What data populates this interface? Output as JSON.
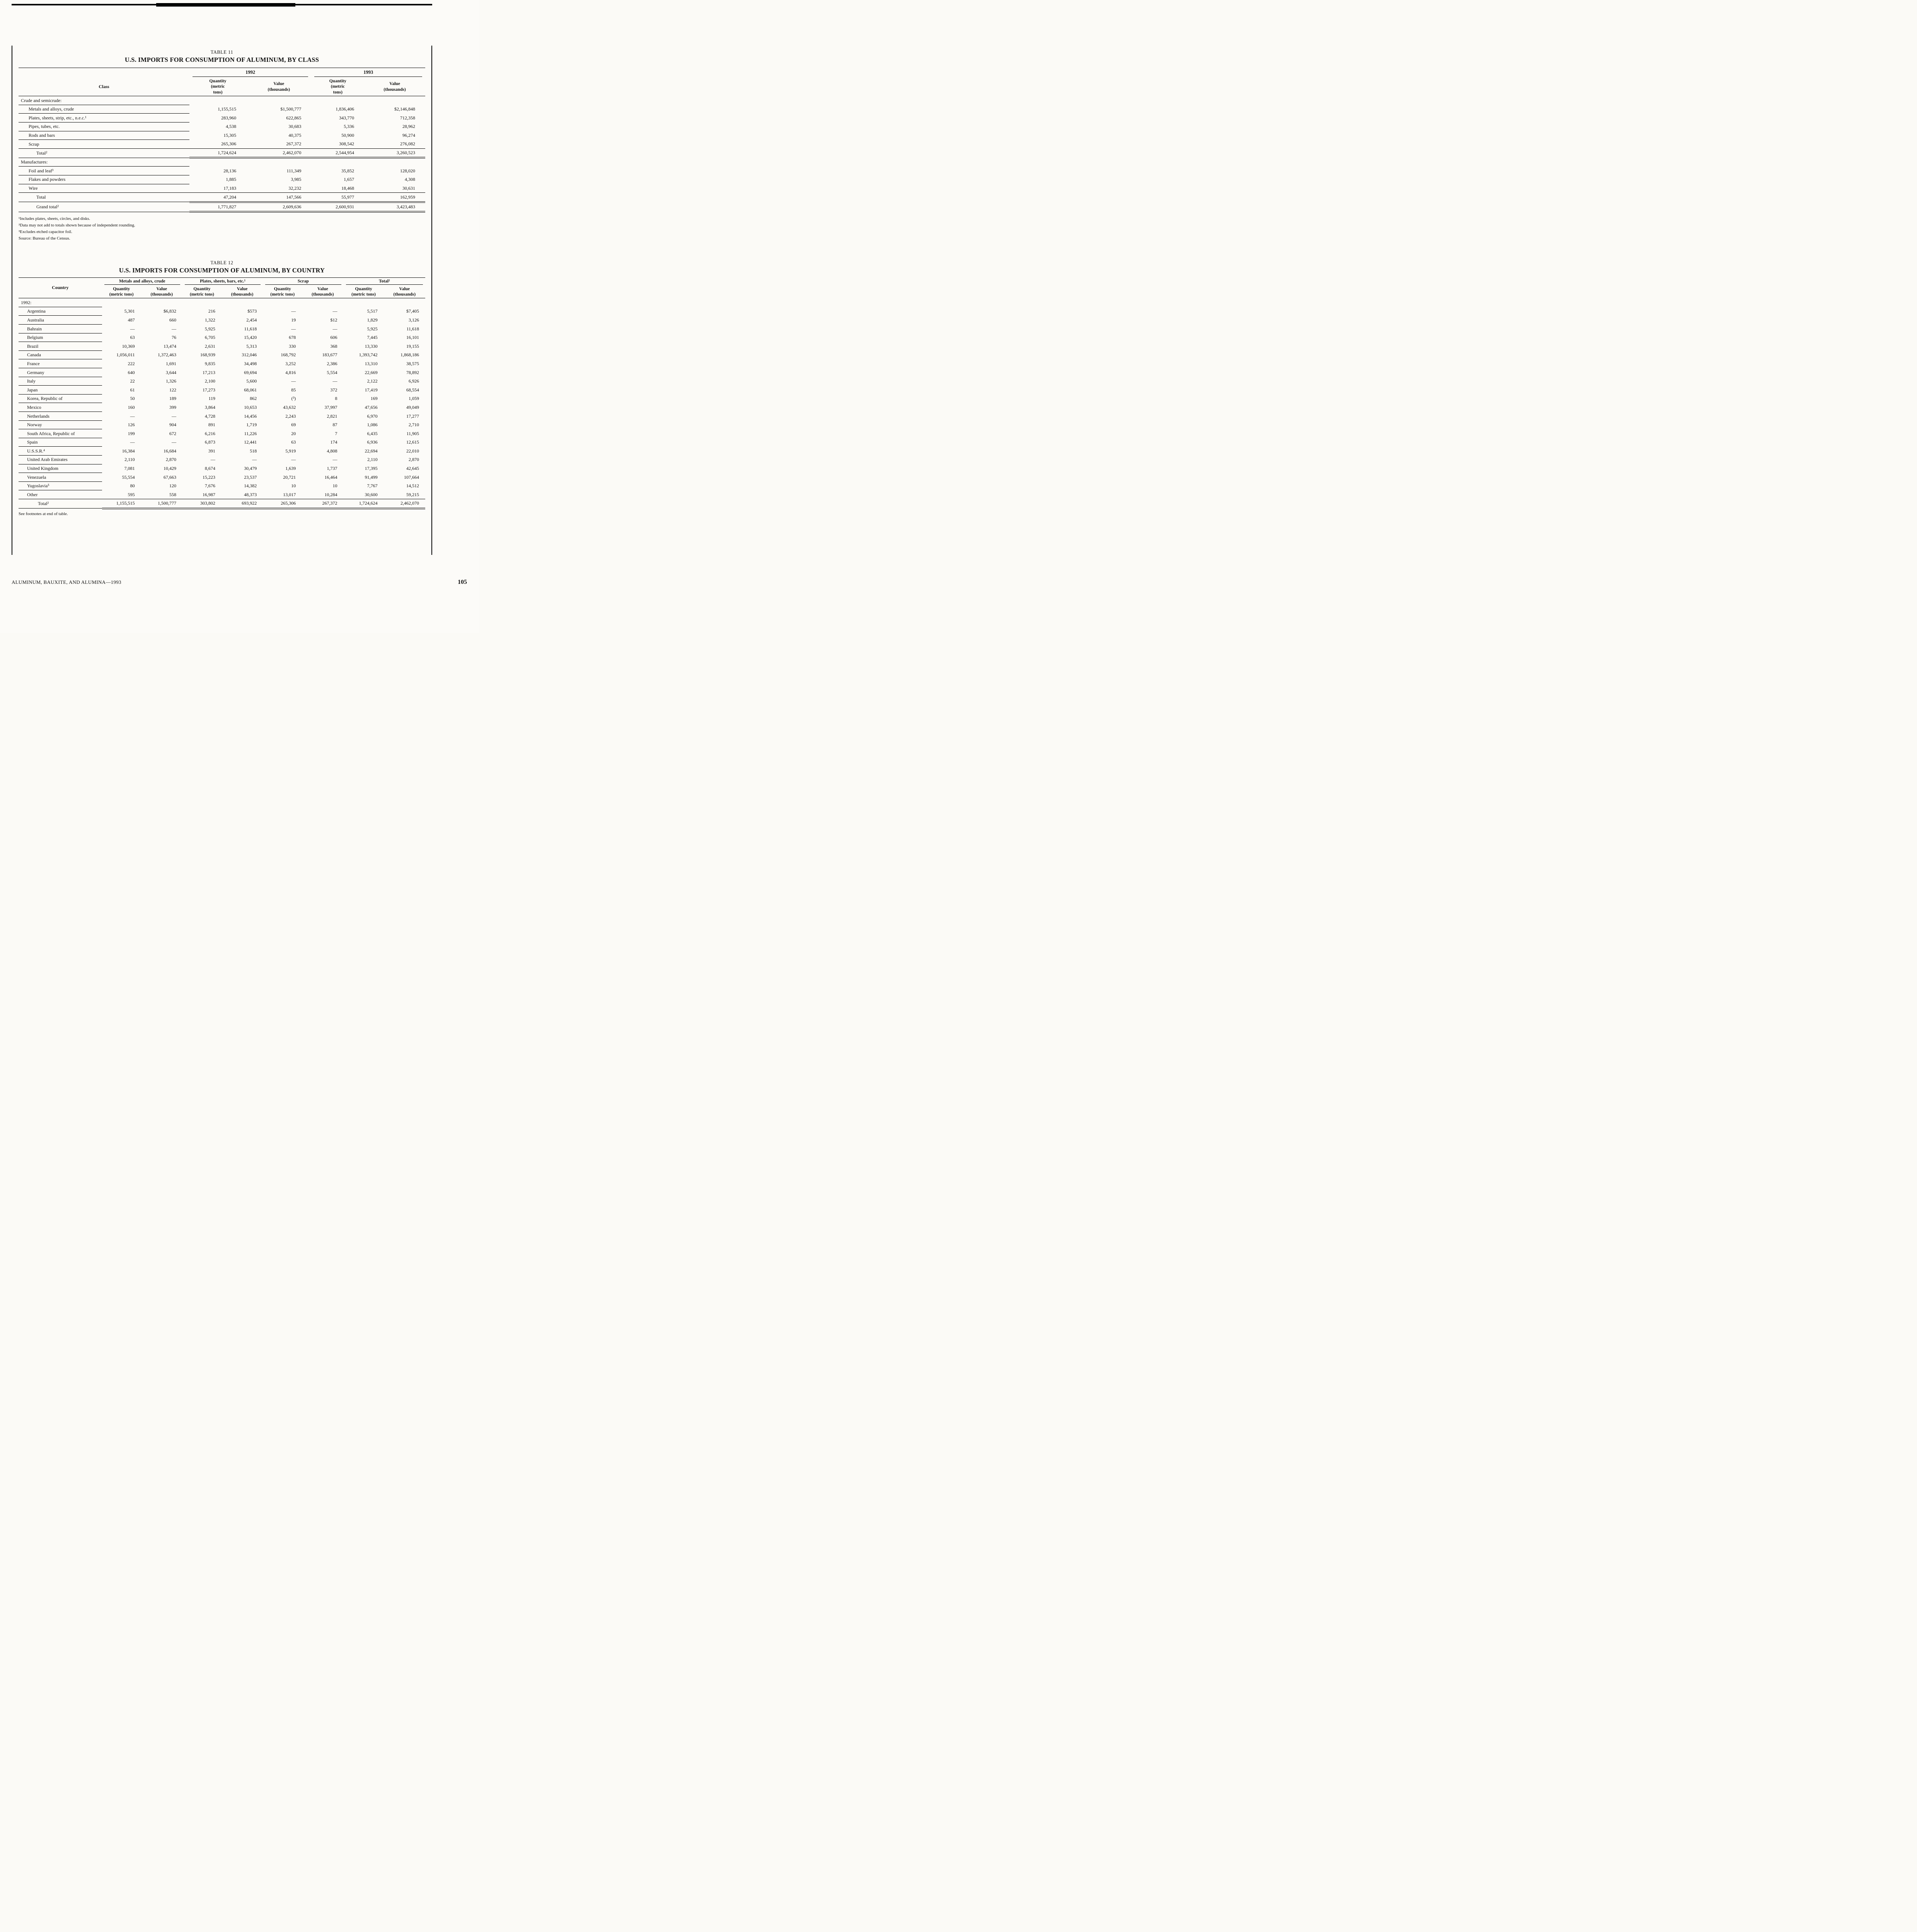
{
  "page": {
    "footer_left": "ALUMINUM, BAUXITE, AND ALUMINA—1993",
    "page_number": "105"
  },
  "table11": {
    "caption": "TABLE 11",
    "title": "U.S. IMPORTS FOR CONSUMPTION OF ALUMINUM, BY CLASS",
    "class_header": "Class",
    "year_1992": "1992",
    "year_1993": "1993",
    "quantity_header": "Quantity\n(metric\ntons)",
    "value_header": "Value\n(thousands)",
    "rows": [
      {
        "type": "section",
        "label": "Crude and semicrude:"
      },
      {
        "type": "data",
        "label": "Metals and alloys, crude",
        "values": [
          "1,155,515",
          "$1,500,777",
          "1,836,406",
          "$2,146,848"
        ]
      },
      {
        "type": "data",
        "label": "Plates, sheets, strip, etc., n.e.c.¹",
        "values": [
          "283,960",
          "622,865",
          "343,770",
          "712,358"
        ]
      },
      {
        "type": "data",
        "label": "Pipes, tubes, etc.",
        "values": [
          "4,538",
          "30,683",
          "5,336",
          "28,962"
        ]
      },
      {
        "type": "data",
        "label": "Rods and bars",
        "values": [
          "15,305",
          "40,375",
          "50,900",
          "96,274"
        ]
      },
      {
        "type": "data",
        "label": "Scrap",
        "values": [
          "265,306",
          "267,372",
          "308,542",
          "276,082"
        ]
      },
      {
        "type": "total",
        "label": "Total²",
        "values": [
          "1,724,624",
          "2,462,070",
          "2,544,954",
          "3,260,523"
        ]
      },
      {
        "type": "section",
        "label": "Manufactures:"
      },
      {
        "type": "data",
        "label": "Foil and leaf³",
        "values": [
          "28,136",
          "111,349",
          "35,852",
          "128,020"
        ]
      },
      {
        "type": "data",
        "label": "Flakes and powders",
        "values": [
          "1,885",
          "3,985",
          "1,657",
          "4,308"
        ]
      },
      {
        "type": "data",
        "label": "Wire",
        "values": [
          "17,183",
          "32,232",
          "18,468",
          "30,631"
        ]
      },
      {
        "type": "total",
        "label": "Total",
        "values": [
          "47,204",
          "147,566",
          "55,977",
          "162,959"
        ]
      },
      {
        "type": "grand",
        "label": "Grand total²",
        "values": [
          "1,771,827",
          "2,609,636",
          "2,600,931",
          "3,423,483"
        ]
      }
    ],
    "footnotes": [
      "¹Includes plates, sheets, circles, and disks.",
      "²Data may not add to totals shown because of independent rounding.",
      "³Excludes etched capacitor foil.",
      "Source:  Bureau of the Census."
    ]
  },
  "table12": {
    "caption": "TABLE 12",
    "title": "U.S. IMPORTS FOR CONSUMPTION OF ALUMINUM, BY COUNTRY",
    "country_header": "Country",
    "group_headers": [
      "Metals and alloys, crude",
      "Plates, sheets, bars, etc.¹",
      "Scrap",
      "Total²"
    ],
    "quantity_header": "Quantity\n(metric tons)",
    "value_header": "Value\n(thousands)",
    "rows": [
      {
        "type": "section",
        "label": "1992:"
      },
      {
        "type": "data",
        "label": "Argentina",
        "values": [
          "5,301",
          "$6,832",
          "216",
          "$573",
          "—",
          "—",
          "5,517",
          "$7,405"
        ]
      },
      {
        "type": "data",
        "label": "Australia",
        "values": [
          "487",
          "660",
          "1,322",
          "2,454",
          "19",
          "$12",
          "1,829",
          "3,126"
        ]
      },
      {
        "type": "data",
        "label": "Bahrain",
        "values": [
          "—",
          "—",
          "5,925",
          "11,618",
          "—",
          "—",
          "5,925",
          "11,618"
        ]
      },
      {
        "type": "data",
        "label": "Belgium",
        "values": [
          "63",
          "76",
          "6,705",
          "15,420",
          "678",
          "606",
          "7,445",
          "16,101"
        ]
      },
      {
        "type": "data",
        "label": "Brazil",
        "values": [
          "10,369",
          "13,474",
          "2,631",
          "5,313",
          "330",
          "368",
          "13,330",
          "19,155"
        ]
      },
      {
        "type": "data",
        "label": "Canada",
        "values": [
          "1,056,011",
          "1,372,463",
          "168,939",
          "312,046",
          "168,792",
          "183,677",
          "1,393,742",
          "1,868,186"
        ]
      },
      {
        "type": "data",
        "label": "France",
        "values": [
          "222",
          "1,691",
          "9,835",
          "34,498",
          "3,252",
          "2,386",
          "13,310",
          "38,575"
        ]
      },
      {
        "type": "data",
        "label": "Germany",
        "values": [
          "640",
          "3,644",
          "17,213",
          "69,694",
          "4,816",
          "5,554",
          "22,669",
          "78,892"
        ]
      },
      {
        "type": "data",
        "label": "Italy",
        "values": [
          "22",
          "1,326",
          "2,100",
          "5,600",
          "—",
          "—",
          "2,122",
          "6,926"
        ]
      },
      {
        "type": "data",
        "label": "Japan",
        "values": [
          "61",
          "122",
          "17,273",
          "68,061",
          "85",
          "372",
          "17,419",
          "68,554"
        ]
      },
      {
        "type": "data",
        "label": "Korea, Republic of",
        "values": [
          "50",
          "189",
          "119",
          "862",
          "(³)",
          "8",
          "169",
          "1,059"
        ]
      },
      {
        "type": "data",
        "label": "Mexico",
        "values": [
          "160",
          "399",
          "3,864",
          "10,653",
          "43,632",
          "37,997",
          "47,656",
          "49,049"
        ]
      },
      {
        "type": "data",
        "label": "Netherlands",
        "values": [
          "—",
          "—",
          "4,728",
          "14,456",
          "2,243",
          "2,821",
          "6,970",
          "17,277"
        ]
      },
      {
        "type": "data",
        "label": "Norway",
        "values": [
          "126",
          "904",
          "891",
          "1,719",
          "69",
          "87",
          "1,086",
          "2,710"
        ]
      },
      {
        "type": "data",
        "label": "South Africa, Republic of",
        "values": [
          "199",
          "672",
          "6,216",
          "11,226",
          "20",
          "7",
          "6,435",
          "11,905"
        ]
      },
      {
        "type": "data",
        "label": "Spain",
        "values": [
          "—",
          "—",
          "6,873",
          "12,441",
          "63",
          "174",
          "6,936",
          "12,615"
        ]
      },
      {
        "type": "data",
        "label": "U.S.S.R.⁴",
        "values": [
          "16,384",
          "16,684",
          "391",
          "518",
          "5,919",
          "4,808",
          "22,694",
          "22,010"
        ]
      },
      {
        "type": "data",
        "label": "United Arab Emirates",
        "values": [
          "2,110",
          "2,870",
          "—",
          "—",
          "—",
          "—",
          "2,110",
          "2,870"
        ]
      },
      {
        "type": "data",
        "label": "United Kingdom",
        "values": [
          "7,081",
          "10,429",
          "8,674",
          "30,479",
          "1,639",
          "1,737",
          "17,395",
          "42,645"
        ]
      },
      {
        "type": "data",
        "label": "Venezuela",
        "values": [
          "55,554",
          "67,663",
          "15,223",
          "23,537",
          "20,721",
          "16,464",
          "91,499",
          "107,664"
        ]
      },
      {
        "type": "data",
        "label": "Yugoslavia⁵",
        "values": [
          "80",
          "120",
          "7,676",
          "14,382",
          "10",
          "10",
          "7,767",
          "14,512"
        ]
      },
      {
        "type": "data",
        "label": "Other",
        "values": [
          "595",
          "558",
          "16,987",
          "48,373",
          "13,017",
          "10,284",
          "30,600",
          "59,215"
        ]
      },
      {
        "type": "total",
        "label": "Total²",
        "values": [
          "1,155,515",
          "1,500,777",
          "303,802",
          "693,922",
          "265,306",
          "267,372",
          "1,724,624",
          "2,462,070"
        ]
      }
    ],
    "note": "See footnotes at end of table."
  }
}
